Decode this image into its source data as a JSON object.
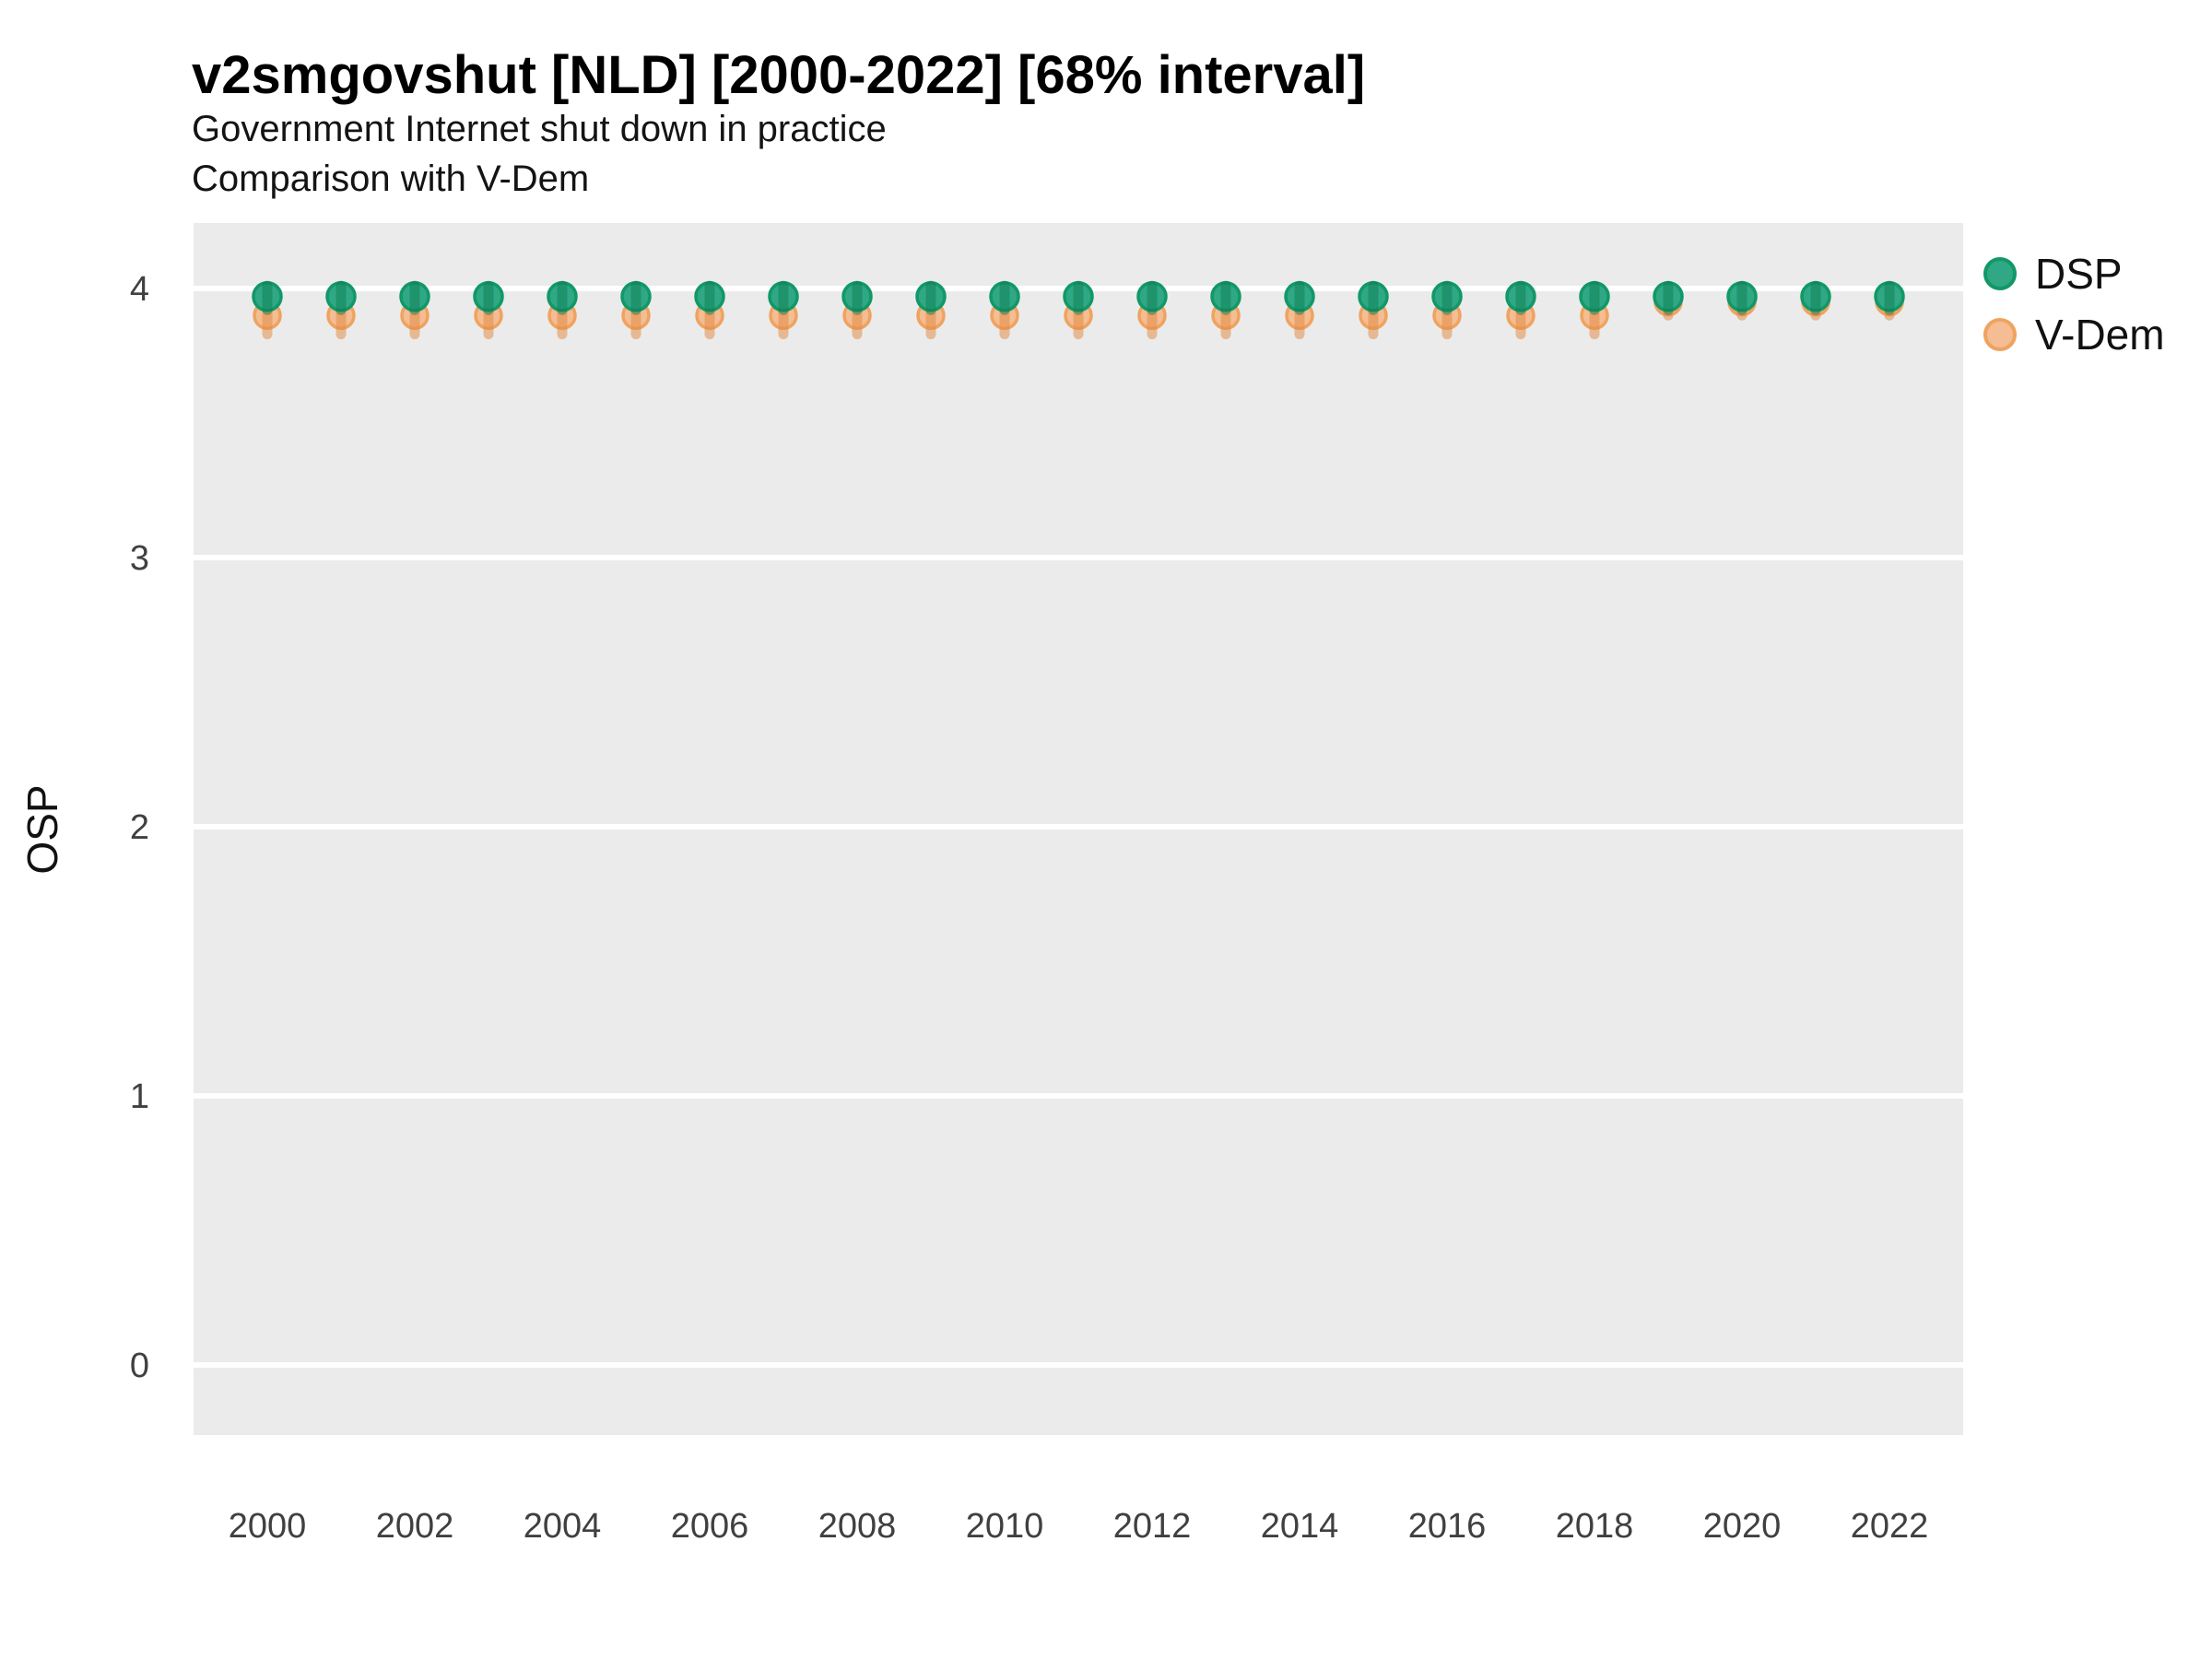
{
  "header": {
    "title": "v2smgovshut [NLD] [2000-2022] [68% interval]",
    "subtitle1": "Government Internet shut down in practice",
    "subtitle2": "Comparison with V-Dem"
  },
  "chart_data": {
    "type": "scatter",
    "title": "v2smgovshut [NLD] [2000-2022] [68% interval]",
    "subtitle": [
      "Government Internet shut down in practice",
      "Comparison with V-Dem"
    ],
    "xlabel": "",
    "ylabel": "OSP",
    "interval_note": "68% interval",
    "x_ticks": [
      2000,
      2002,
      2004,
      2006,
      2008,
      2010,
      2012,
      2014,
      2016,
      2018,
      2020,
      2022
    ],
    "y_ticks": [
      0,
      1,
      2,
      3,
      4
    ],
    "xlim": [
      1999,
      2023
    ],
    "ylim": [
      -0.26,
      4.24
    ],
    "grid": "horizontal-only",
    "legend_position": "right-top",
    "panel_bg": "#EBEBEB",
    "grid_color": "#FFFFFF",
    "tick_label_color": "#404040",
    "years": [
      2000,
      2001,
      2002,
      2003,
      2004,
      2005,
      2006,
      2007,
      2008,
      2009,
      2010,
      2011,
      2012,
      2013,
      2014,
      2015,
      2016,
      2017,
      2018,
      2019,
      2020,
      2021,
      2022
    ],
    "series": [
      {
        "name": "V-Dem",
        "color": "#F4BD93",
        "stroke": "#EFA360",
        "interval_color": "#E2873E",
        "interval_opacity": 0.5,
        "radius": 14,
        "est": [
          3.9,
          3.9,
          3.9,
          3.9,
          3.9,
          3.9,
          3.9,
          3.9,
          3.9,
          3.9,
          3.9,
          3.9,
          3.9,
          3.9,
          3.9,
          3.9,
          3.9,
          3.9,
          3.9,
          3.95,
          3.95,
          3.95,
          3.95
        ],
        "lo": [
          3.83,
          3.83,
          3.83,
          3.83,
          3.83,
          3.83,
          3.83,
          3.83,
          3.83,
          3.83,
          3.83,
          3.83,
          3.83,
          3.83,
          3.83,
          3.83,
          3.83,
          3.83,
          3.83,
          3.9,
          3.9,
          3.9,
          3.9
        ],
        "hi": [
          3.95,
          3.95,
          3.95,
          3.95,
          3.95,
          3.95,
          3.95,
          3.95,
          3.95,
          3.95,
          3.95,
          3.95,
          3.95,
          3.95,
          3.95,
          3.95,
          3.95,
          3.95,
          3.95,
          3.99,
          3.99,
          3.99,
          3.99
        ]
      },
      {
        "name": "DSP",
        "color": "#30A883",
        "stroke": "#129868",
        "interval_color": "#0B7A50",
        "interval_opacity": 0.45,
        "radius": 15,
        "est": [
          3.97,
          3.97,
          3.97,
          3.97,
          3.97,
          3.97,
          3.97,
          3.97,
          3.97,
          3.97,
          3.97,
          3.97,
          3.97,
          3.97,
          3.97,
          3.97,
          3.97,
          3.97,
          3.97,
          3.97,
          3.97,
          3.97,
          3.97
        ],
        "lo": [
          3.92,
          3.92,
          3.92,
          3.92,
          3.92,
          3.92,
          3.92,
          3.92,
          3.92,
          3.92,
          3.92,
          3.92,
          3.92,
          3.92,
          3.92,
          3.92,
          3.92,
          3.92,
          3.92,
          3.92,
          3.92,
          3.92,
          3.92
        ],
        "hi": [
          4.01,
          4.01,
          4.01,
          4.01,
          4.01,
          4.01,
          4.01,
          4.01,
          4.01,
          4.01,
          4.01,
          4.01,
          4.01,
          4.01,
          4.01,
          4.01,
          4.01,
          4.01,
          4.01,
          4.01,
          4.01,
          4.01,
          4.01
        ]
      }
    ]
  },
  "legend": {
    "items": [
      {
        "label": "DSP"
      },
      {
        "label": "V-Dem"
      }
    ]
  }
}
